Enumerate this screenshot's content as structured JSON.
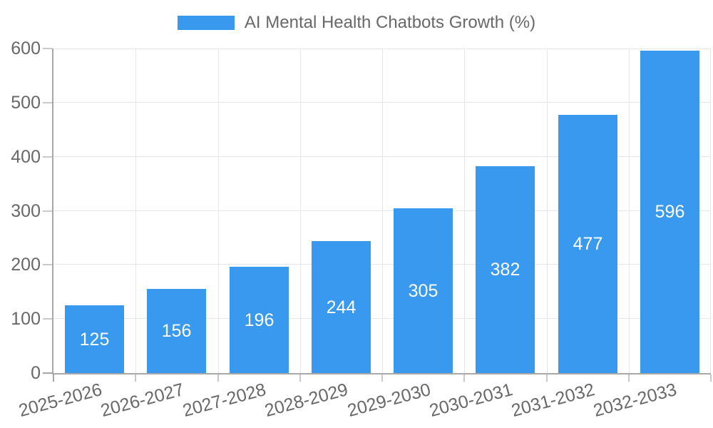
{
  "chart_data": {
    "type": "bar",
    "legend_label": "AI Mental Health Chatbots Growth (%)",
    "legend_position": "top",
    "categories": [
      "2025-2026",
      "2026-2027",
      "2027-2028",
      "2028-2029",
      "2029-2030",
      "2030-2031",
      "2031-2032",
      "2032-2033"
    ],
    "values": [
      125,
      156,
      196,
      244,
      305,
      382,
      477,
      596
    ],
    "yticks": [
      0,
      100,
      200,
      300,
      400,
      500,
      600
    ],
    "ylim": [
      0,
      600
    ],
    "grid": true,
    "bar_labels_inside": true,
    "colors": {
      "bar": "#3899ee",
      "bar_label": "#ffffff",
      "axis": "#a8a8a8",
      "grid": "#e6e6e6",
      "tick_mark": "#c9c9c9",
      "tick_text": "#686868"
    }
  }
}
